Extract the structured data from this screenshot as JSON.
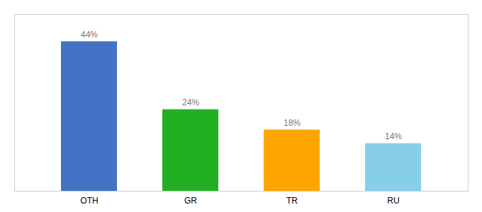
{
  "chart_data": {
    "type": "bar",
    "categories": [
      "OTH",
      "GR",
      "TR",
      "RU"
    ],
    "values": [
      44,
      24,
      18,
      14
    ],
    "value_labels": [
      "44%",
      "24%",
      "18%",
      "14%"
    ],
    "colors": [
      "#4472C4",
      "#22B022",
      "#FFA500",
      "#87CEEB"
    ],
    "ylim": [
      0,
      52
    ],
    "data_labels": true,
    "tick_labels": "x",
    "grid": false
  }
}
